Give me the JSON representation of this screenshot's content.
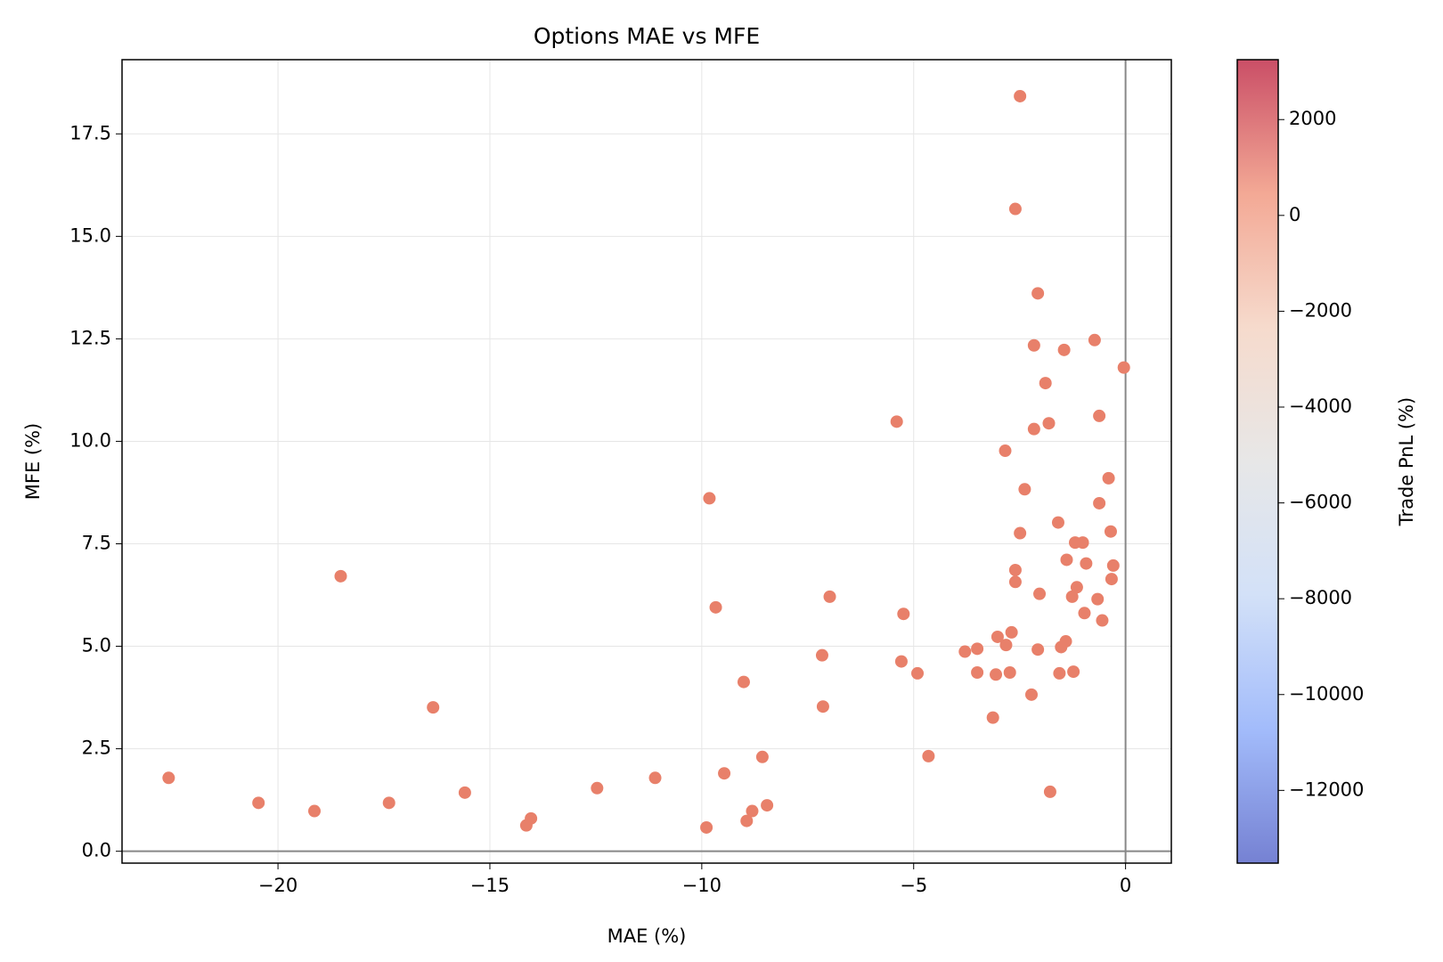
{
  "chart_data": {
    "type": "scatter",
    "title": "Options MAE vs MFE",
    "x_label": "MAE (%)",
    "y_label": "MFE (%)",
    "colorbar_label": "Trade PnL (%)",
    "colormap": "coolwarm",
    "xlim": [
      -23.68,
      1.08
    ],
    "ylim": [
      -0.29,
      19.31
    ],
    "xticks": [
      {
        "value": -20,
        "label": "−20"
      },
      {
        "value": -15,
        "label": "−15"
      },
      {
        "value": -10,
        "label": "−10"
      },
      {
        "value": -5,
        "label": "−5"
      },
      0
    ],
    "yticks": [
      {
        "value": 0,
        "label": "0.0"
      },
      2.5,
      {
        "value": 5,
        "label": "5.0"
      },
      7.5,
      {
        "value": 10,
        "label": "10.0"
      },
      12.5,
      {
        "value": 15,
        "label": "15.0"
      },
      17.5
    ],
    "clim": [
      -13518,
      3250
    ],
    "cticks": [
      {
        "value": -12000,
        "label": "−12000"
      },
      {
        "value": -10000,
        "label": "−10000"
      },
      {
        "value": -8000,
        "label": "−8000"
      },
      {
        "value": -6000,
        "label": "−6000"
      },
      {
        "value": -4000,
        "label": "−4000"
      },
      {
        "value": -2000,
        "label": "−2000"
      },
      0,
      2000
    ],
    "grid": true,
    "hline": 0,
    "vline": 0,
    "series": [
      {
        "color": "#e8806a",
        "x": [
          -22.58,
          -20.46,
          -19.14,
          -18.52,
          -17.38,
          -16.34,
          -15.59,
          -14.14,
          -14.03,
          -12.47,
          -11.1,
          -9.89,
          -9.82,
          -9.67,
          -9.47,
          -9.01,
          -8.94,
          -8.81,
          -8.57,
          -8.46,
          -7.16,
          -7.14,
          -6.98,
          -5.4,
          -5.29,
          -5.24,
          -4.91,
          -4.65,
          -3.79,
          -3.5,
          -3.5,
          -3.13,
          -3.06,
          -3.02,
          -2.84,
          -2.82,
          -2.73,
          -2.69,
          -2.6,
          -2.6,
          -2.6,
          -2.49,
          -2.49,
          -2.38,
          -2.22,
          -2.16,
          -2.16,
          -2.07,
          -2.07,
          -2.03,
          -1.89,
          -1.81,
          -1.78,
          -1.59,
          -1.56,
          -1.52,
          -1.45,
          -1.41,
          -1.39,
          -1.26,
          -1.23,
          -1.19,
          -1.15,
          -1.01,
          -0.97,
          -0.93,
          -0.73,
          -0.66,
          -0.62,
          -0.62,
          -0.55,
          -0.4,
          -0.35,
          -0.33,
          -0.29,
          -0.04
        ],
        "values": [
          1.79,
          1.18,
          0.98,
          6.71,
          1.18,
          3.51,
          1.43,
          0.63,
          0.8,
          1.54,
          1.79,
          0.58,
          8.61,
          5.95,
          1.9,
          4.13,
          0.74,
          0.98,
          2.3,
          1.12,
          4.78,
          3.53,
          6.21,
          10.48,
          4.63,
          5.79,
          4.34,
          2.32,
          4.87,
          4.94,
          4.36,
          3.26,
          4.31,
          5.23,
          9.77,
          5.03,
          4.36,
          5.34,
          15.67,
          6.86,
          6.57,
          18.42,
          7.76,
          8.83,
          3.82,
          12.34,
          10.3,
          13.61,
          4.92,
          6.28,
          11.42,
          10.44,
          1.45,
          8.02,
          4.34,
          4.98,
          12.23,
          5.12,
          7.11,
          6.21,
          4.38,
          7.53,
          6.44,
          7.53,
          5.81,
          7.02,
          12.47,
          6.15,
          10.62,
          8.49,
          5.63,
          9.1,
          7.8,
          6.64,
          6.97,
          11.8
        ]
      }
    ]
  }
}
